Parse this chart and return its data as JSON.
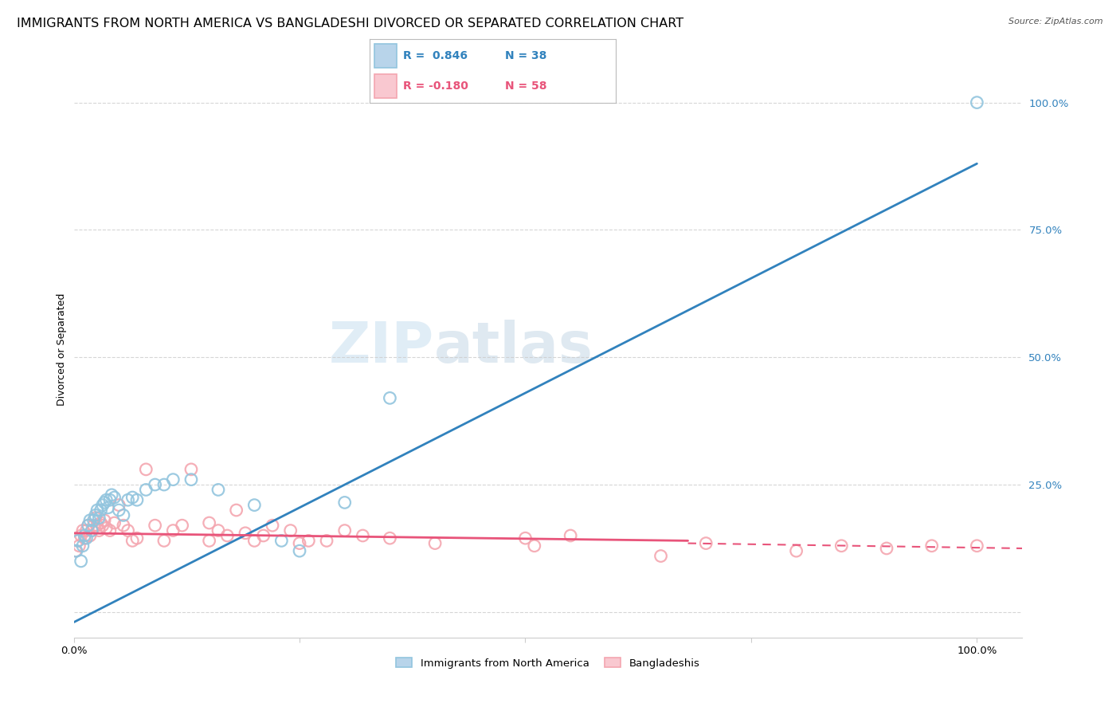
{
  "title": "IMMIGRANTS FROM NORTH AMERICA VS BANGLADESHI DIVORCED OR SEPARATED CORRELATION CHART",
  "source": "Source: ZipAtlas.com",
  "ylabel": "Divorced or Separated",
  "legend_label_blue": "Immigrants from North America",
  "legend_label_pink": "Bangladeshis",
  "watermark_zip": "ZIP",
  "watermark_atlas": "atlas",
  "blue_scatter_color": "#92c5de",
  "blue_line_color": "#3182bd",
  "pink_scatter_color": "#f4a6b0",
  "pink_line_color": "#e8547a",
  "background_color": "#ffffff",
  "grid_color": "#cccccc",
  "blue_scatter": [
    [
      0.3,
      12.0
    ],
    [
      0.5,
      14.0
    ],
    [
      0.8,
      10.0
    ],
    [
      1.0,
      13.0
    ],
    [
      1.2,
      15.0
    ],
    [
      1.4,
      14.5
    ],
    [
      1.6,
      17.0
    ],
    [
      1.8,
      18.0
    ],
    [
      2.0,
      16.0
    ],
    [
      2.2,
      18.0
    ],
    [
      2.4,
      19.0
    ],
    [
      2.6,
      20.0
    ],
    [
      2.8,
      18.5
    ],
    [
      3.0,
      20.0
    ],
    [
      3.2,
      21.0
    ],
    [
      3.4,
      21.5
    ],
    [
      3.6,
      22.0
    ],
    [
      3.8,
      20.5
    ],
    [
      4.0,
      22.0
    ],
    [
      4.2,
      23.0
    ],
    [
      4.5,
      22.5
    ],
    [
      5.0,
      20.0
    ],
    [
      5.5,
      19.0
    ],
    [
      6.0,
      22.0
    ],
    [
      6.5,
      22.5
    ],
    [
      7.0,
      22.0
    ],
    [
      8.0,
      24.0
    ],
    [
      9.0,
      25.0
    ],
    [
      10.0,
      25.0
    ],
    [
      11.0,
      26.0
    ],
    [
      13.0,
      26.0
    ],
    [
      16.0,
      24.0
    ],
    [
      20.0,
      21.0
    ],
    [
      23.0,
      14.0
    ],
    [
      25.0,
      12.0
    ],
    [
      30.0,
      21.5
    ],
    [
      35.0,
      42.0
    ],
    [
      100.0,
      100.0
    ]
  ],
  "pink_scatter": [
    [
      0.2,
      12.0
    ],
    [
      0.4,
      14.0
    ],
    [
      0.6,
      13.0
    ],
    [
      0.8,
      15.0
    ],
    [
      1.0,
      16.0
    ],
    [
      1.2,
      14.5
    ],
    [
      1.4,
      16.0
    ],
    [
      1.6,
      17.0
    ],
    [
      1.8,
      15.0
    ],
    [
      2.0,
      16.0
    ],
    [
      2.2,
      17.0
    ],
    [
      2.4,
      18.5
    ],
    [
      2.6,
      17.0
    ],
    [
      2.8,
      16.0
    ],
    [
      3.0,
      17.5
    ],
    [
      3.2,
      17.0
    ],
    [
      3.4,
      18.0
    ],
    [
      3.6,
      16.5
    ],
    [
      4.0,
      16.0
    ],
    [
      4.5,
      17.5
    ],
    [
      5.0,
      21.0
    ],
    [
      5.5,
      17.0
    ],
    [
      6.0,
      16.0
    ],
    [
      6.5,
      14.0
    ],
    [
      7.0,
      14.5
    ],
    [
      8.0,
      28.0
    ],
    [
      9.0,
      17.0
    ],
    [
      10.0,
      14.0
    ],
    [
      11.0,
      16.0
    ],
    [
      12.0,
      17.0
    ],
    [
      13.0,
      28.0
    ],
    [
      15.0,
      17.5
    ],
    [
      17.0,
      15.0
    ],
    [
      18.0,
      20.0
    ],
    [
      20.0,
      14.0
    ],
    [
      22.0,
      17.0
    ],
    [
      24.0,
      16.0
    ],
    [
      25.0,
      13.5
    ],
    [
      28.0,
      14.0
    ],
    [
      30.0,
      16.0
    ],
    [
      35.0,
      14.5
    ],
    [
      40.0,
      13.5
    ],
    [
      50.0,
      14.5
    ],
    [
      51.0,
      13.0
    ],
    [
      55.0,
      15.0
    ],
    [
      65.0,
      11.0
    ],
    [
      70.0,
      13.5
    ],
    [
      80.0,
      12.0
    ],
    [
      85.0,
      13.0
    ],
    [
      90.0,
      12.5
    ],
    [
      95.0,
      13.0
    ],
    [
      100.0,
      13.0
    ],
    [
      15.0,
      14.0
    ],
    [
      16.0,
      16.0
    ],
    [
      19.0,
      15.5
    ],
    [
      21.0,
      15.0
    ],
    [
      26.0,
      14.0
    ],
    [
      32.0,
      15.0
    ]
  ],
  "blue_line": [
    [
      0,
      100
    ],
    [
      -2.0,
      88.0
    ]
  ],
  "pink_line_solid": [
    [
      0,
      68
    ],
    [
      15.5,
      14.0
    ]
  ],
  "pink_line_dash": [
    [
      68,
      105
    ],
    [
      13.5,
      12.5
    ]
  ],
  "xlim": [
    0,
    105
  ],
  "ylim": [
    -5,
    108
  ],
  "yticks": [
    0,
    25,
    50,
    75,
    100
  ],
  "ytick_labels": [
    "",
    "25.0%",
    "50.0%",
    "75.0%",
    "100.0%"
  ],
  "xtick_positions": [
    0,
    25,
    50,
    75,
    100
  ],
  "xtick_labels": [
    "0.0%",
    "",
    "",
    "",
    "100.0%"
  ],
  "title_fontsize": 11.5,
  "axis_label_fontsize": 9,
  "tick_label_fontsize": 9.5
}
